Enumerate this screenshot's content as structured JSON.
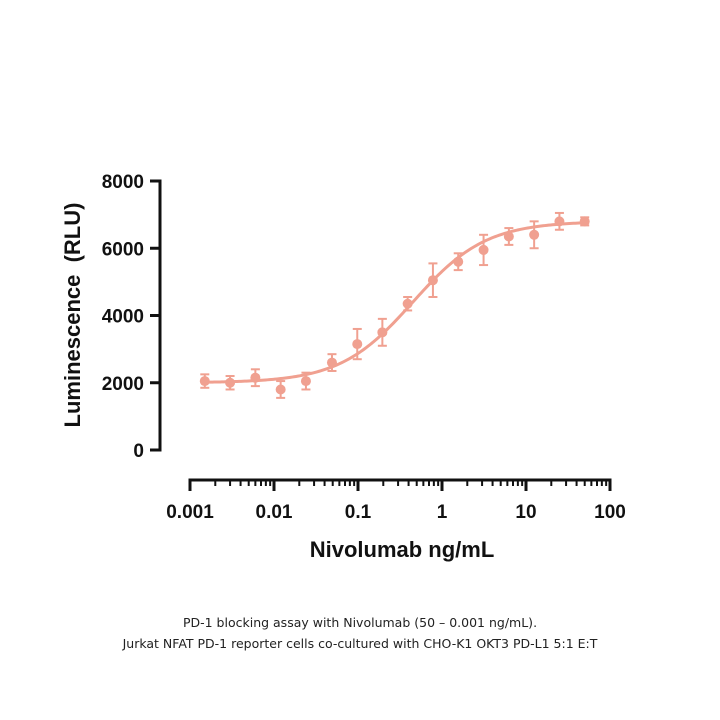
{
  "chart_data": {
    "type": "scatter",
    "xscale": "log",
    "xlabel": "Nivolumab ng/mL",
    "ylabel": "Luminescence  (RLU)",
    "xlim": [
      0.001,
      100
    ],
    "ylim": [
      0,
      8000
    ],
    "x_ticks": [
      "0.001",
      "0.01",
      "0.1",
      "1",
      "10",
      "100"
    ],
    "y_ticks": [
      "0",
      "2000",
      "4000",
      "6000",
      "8000"
    ],
    "color": "#f0a090",
    "grid": false,
    "series": [
      {
        "x": [
          0.0015,
          0.003,
          0.006,
          0.012,
          0.024,
          0.049,
          0.098,
          0.195,
          0.39,
          0.78,
          1.56,
          3.125,
          6.25,
          12.5,
          25,
          50
        ],
        "y": [
          2050,
          2000,
          2150,
          1800,
          2050,
          2600,
          3150,
          3500,
          4350,
          5050,
          5600,
          5950,
          6350,
          6400,
          6800,
          6800
        ],
        "error": [
          200,
          200,
          250,
          250,
          250,
          250,
          450,
          400,
          200,
          500,
          250,
          450,
          250,
          400,
          250,
          120
        ]
      }
    ],
    "fit": {
      "type": "4PL",
      "bottom": 2000,
      "top": 6800,
      "ec50": 0.45,
      "hill": 1.0
    }
  },
  "caption": {
    "line1": "PD-1 blocking assay with Nivolumab (50 – 0.001 ng/mL).",
    "line2": "Jurkat NFAT PD-1 reporter cells co-cultured with CHO-K1 OKT3 PD-L1 5:1 E:T"
  }
}
